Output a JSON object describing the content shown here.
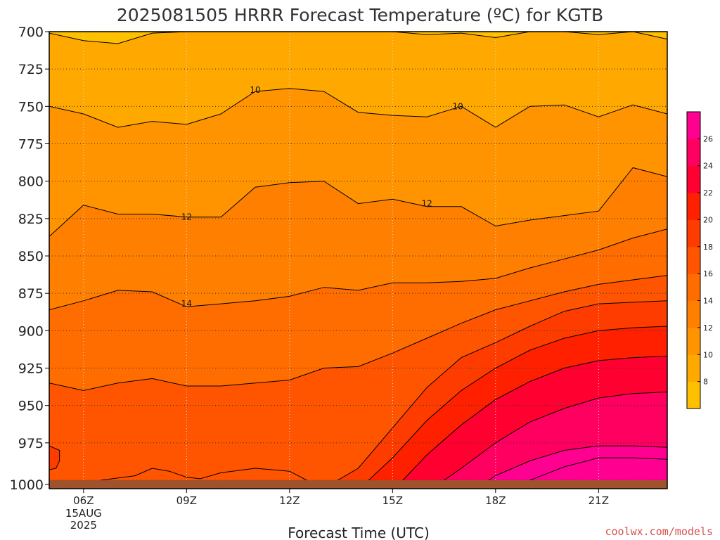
{
  "chart_data": {
    "type": "heatmap",
    "title": "2025081505 HRRR Forecast Temperature (ºC) for KGTB",
    "xlabel": "Forecast Time (UTC)",
    "ylabel": "",
    "credit": "coolwx.com/models",
    "credit_color": "#d94f4f",
    "x_ticks": [
      {
        "hour": 6,
        "label": "06Z",
        "sublabels": [
          "15AUG",
          "2025"
        ]
      },
      {
        "hour": 9,
        "label": "09Z"
      },
      {
        "hour": 12,
        "label": "12Z"
      },
      {
        "hour": 15,
        "label": "15Z"
      },
      {
        "hour": 18,
        "label": "18Z"
      },
      {
        "hour": 21,
        "label": "21Z"
      }
    ],
    "xlim": [
      5,
      23
    ],
    "ylim": [
      700,
      1000
    ],
    "y_reversed": true,
    "y_ticks": [
      700,
      725,
      750,
      775,
      800,
      825,
      850,
      875,
      900,
      925,
      950,
      975,
      1000
    ],
    "grid": true,
    "colorbar": {
      "levels": [
        6,
        8,
        10,
        12,
        14,
        16,
        18,
        20,
        22,
        24,
        26,
        28
      ],
      "colors": [
        "#ffc000",
        "#ffa800",
        "#ff9400",
        "#ff8000",
        "#ff6c00",
        "#ff5400",
        "#ff3c00",
        "#ff2000",
        "#ff0030",
        "#ff0060",
        "#ff0090"
      ],
      "tick_labels": [
        8,
        10,
        12,
        14,
        16,
        18,
        20,
        22,
        24,
        26
      ],
      "placement": "right"
    },
    "ground_color": "#a0522d",
    "contour_labels": [
      {
        "text": "10",
        "hour": 11.0,
        "pressure": 739
      },
      {
        "text": "10",
        "hour": 16.9,
        "pressure": 750
      },
      {
        "text": "12",
        "hour": 9.0,
        "pressure": 824
      },
      {
        "text": "12",
        "hour": 16.0,
        "pressure": 815
      },
      {
        "text": "14",
        "hour": 9.0,
        "pressure": 882
      }
    ],
    "isotherms": [
      {
        "value": 8,
        "points": [
          [
            5,
            701
          ],
          [
            6,
            706
          ],
          [
            7,
            708
          ],
          [
            8,
            701
          ],
          [
            9,
            700
          ],
          [
            10,
            700
          ],
          [
            11,
            700
          ],
          [
            12,
            700
          ],
          [
            13,
            700
          ],
          [
            14,
            700
          ],
          [
            15,
            700
          ],
          [
            16,
            702
          ],
          [
            17,
            701
          ],
          [
            18,
            704
          ],
          [
            19,
            700
          ],
          [
            20,
            700
          ],
          [
            21,
            702
          ],
          [
            22,
            700
          ],
          [
            23,
            705
          ]
        ]
      },
      {
        "value": 10,
        "points": [
          [
            5,
            750
          ],
          [
            6,
            755
          ],
          [
            7,
            764
          ],
          [
            8,
            760
          ],
          [
            9,
            762
          ],
          [
            10,
            755
          ],
          [
            11,
            740
          ],
          [
            12,
            738
          ],
          [
            13,
            740
          ],
          [
            14,
            754
          ],
          [
            15,
            756
          ],
          [
            16,
            757
          ],
          [
            17,
            750
          ],
          [
            18,
            764
          ],
          [
            19,
            750
          ],
          [
            20,
            749
          ],
          [
            21,
            757
          ],
          [
            22,
            749
          ],
          [
            23,
            755
          ]
        ]
      },
      {
        "value": 12,
        "points": [
          [
            5,
            837
          ],
          [
            6,
            816
          ],
          [
            7,
            822
          ],
          [
            8,
            822
          ],
          [
            9,
            824
          ],
          [
            10,
            824
          ],
          [
            11,
            804
          ],
          [
            12,
            801
          ],
          [
            13,
            800
          ],
          [
            14,
            815
          ],
          [
            15,
            812
          ],
          [
            16,
            817
          ],
          [
            17,
            817
          ],
          [
            18,
            830
          ],
          [
            19,
            826
          ],
          [
            20,
            823
          ],
          [
            21,
            820
          ],
          [
            22,
            791
          ],
          [
            23,
            797
          ]
        ]
      },
      {
        "value": 14,
        "points": [
          [
            5,
            886
          ],
          [
            6,
            880
          ],
          [
            7,
            873
          ],
          [
            8,
            874
          ],
          [
            9,
            884
          ],
          [
            10,
            882
          ],
          [
            11,
            880
          ],
          [
            12,
            877
          ],
          [
            13,
            871
          ],
          [
            14,
            873
          ],
          [
            15,
            868
          ],
          [
            16,
            868
          ],
          [
            17,
            867
          ],
          [
            18,
            865
          ],
          [
            19,
            858
          ],
          [
            20,
            852
          ],
          [
            21,
            846
          ],
          [
            22,
            838
          ],
          [
            23,
            832
          ]
        ]
      },
      {
        "value": 16,
        "points": [
          [
            5,
            935
          ],
          [
            6,
            940
          ],
          [
            7,
            935
          ],
          [
            8,
            932
          ],
          [
            9,
            937
          ],
          [
            10,
            937
          ],
          [
            11,
            935
          ],
          [
            12,
            933
          ],
          [
            13,
            925
          ],
          [
            14,
            924
          ],
          [
            15,
            915
          ],
          [
            16,
            905
          ],
          [
            17,
            895
          ],
          [
            18,
            886
          ],
          [
            19,
            880
          ],
          [
            20,
            874
          ],
          [
            21,
            869
          ],
          [
            22,
            866
          ],
          [
            23,
            863
          ]
        ]
      },
      {
        "value": 18,
        "points": [
          [
            13.4,
            1000
          ],
          [
            14,
            992
          ],
          [
            15,
            965
          ],
          [
            16,
            938
          ],
          [
            17,
            918
          ],
          [
            18,
            908
          ],
          [
            19,
            897
          ],
          [
            20,
            887
          ],
          [
            21,
            882
          ],
          [
            22,
            881
          ],
          [
            23,
            880
          ]
        ]
      },
      {
        "value": 20,
        "points": [
          [
            14.3,
            1000
          ],
          [
            15,
            985
          ],
          [
            16,
            960
          ],
          [
            17,
            940
          ],
          [
            18,
            925
          ],
          [
            19,
            913
          ],
          [
            20,
            905
          ],
          [
            21,
            900
          ],
          [
            22,
            898
          ],
          [
            23,
            897
          ]
        ]
      },
      {
        "value": 22,
        "points": [
          [
            15.3,
            1000
          ],
          [
            16,
            983
          ],
          [
            17,
            963
          ],
          [
            18,
            946
          ],
          [
            19,
            934
          ],
          [
            20,
            925
          ],
          [
            21,
            920
          ],
          [
            22,
            918
          ],
          [
            23,
            917
          ]
        ]
      },
      {
        "value": 24,
        "points": [
          [
            16.5,
            1000
          ],
          [
            17,
            992
          ],
          [
            18,
            975
          ],
          [
            19,
            961
          ],
          [
            20,
            952
          ],
          [
            21,
            945
          ],
          [
            22,
            942
          ],
          [
            23,
            941
          ]
        ]
      },
      {
        "value": 26,
        "points": [
          [
            17.8,
            1000
          ],
          [
            18,
            997
          ],
          [
            19,
            987
          ],
          [
            20,
            980
          ],
          [
            21,
            977
          ],
          [
            22,
            977
          ],
          [
            23,
            978
          ]
        ]
      },
      {
        "value": 28,
        "points": [
          [
            19,
            1000
          ],
          [
            20,
            991
          ],
          [
            21,
            985
          ],
          [
            22,
            985
          ],
          [
            23,
            986
          ]
        ]
      }
    ],
    "cool_pockets": [
      {
        "value": 18,
        "points": [
          [
            5,
            977
          ],
          [
            5.3,
            980
          ],
          [
            5.3,
            987
          ],
          [
            5.2,
            992
          ],
          [
            5,
            993
          ]
        ]
      },
      {
        "value": 16,
        "points": [
          [
            6.5,
            1000
          ],
          [
            7.5,
            997
          ],
          [
            8,
            992
          ],
          [
            8.5,
            994
          ],
          [
            9,
            998
          ],
          [
            9.4,
            999
          ],
          [
            10,
            995
          ],
          [
            11,
            992
          ],
          [
            12,
            994
          ],
          [
            12.5,
            1000
          ]
        ]
      }
    ]
  }
}
